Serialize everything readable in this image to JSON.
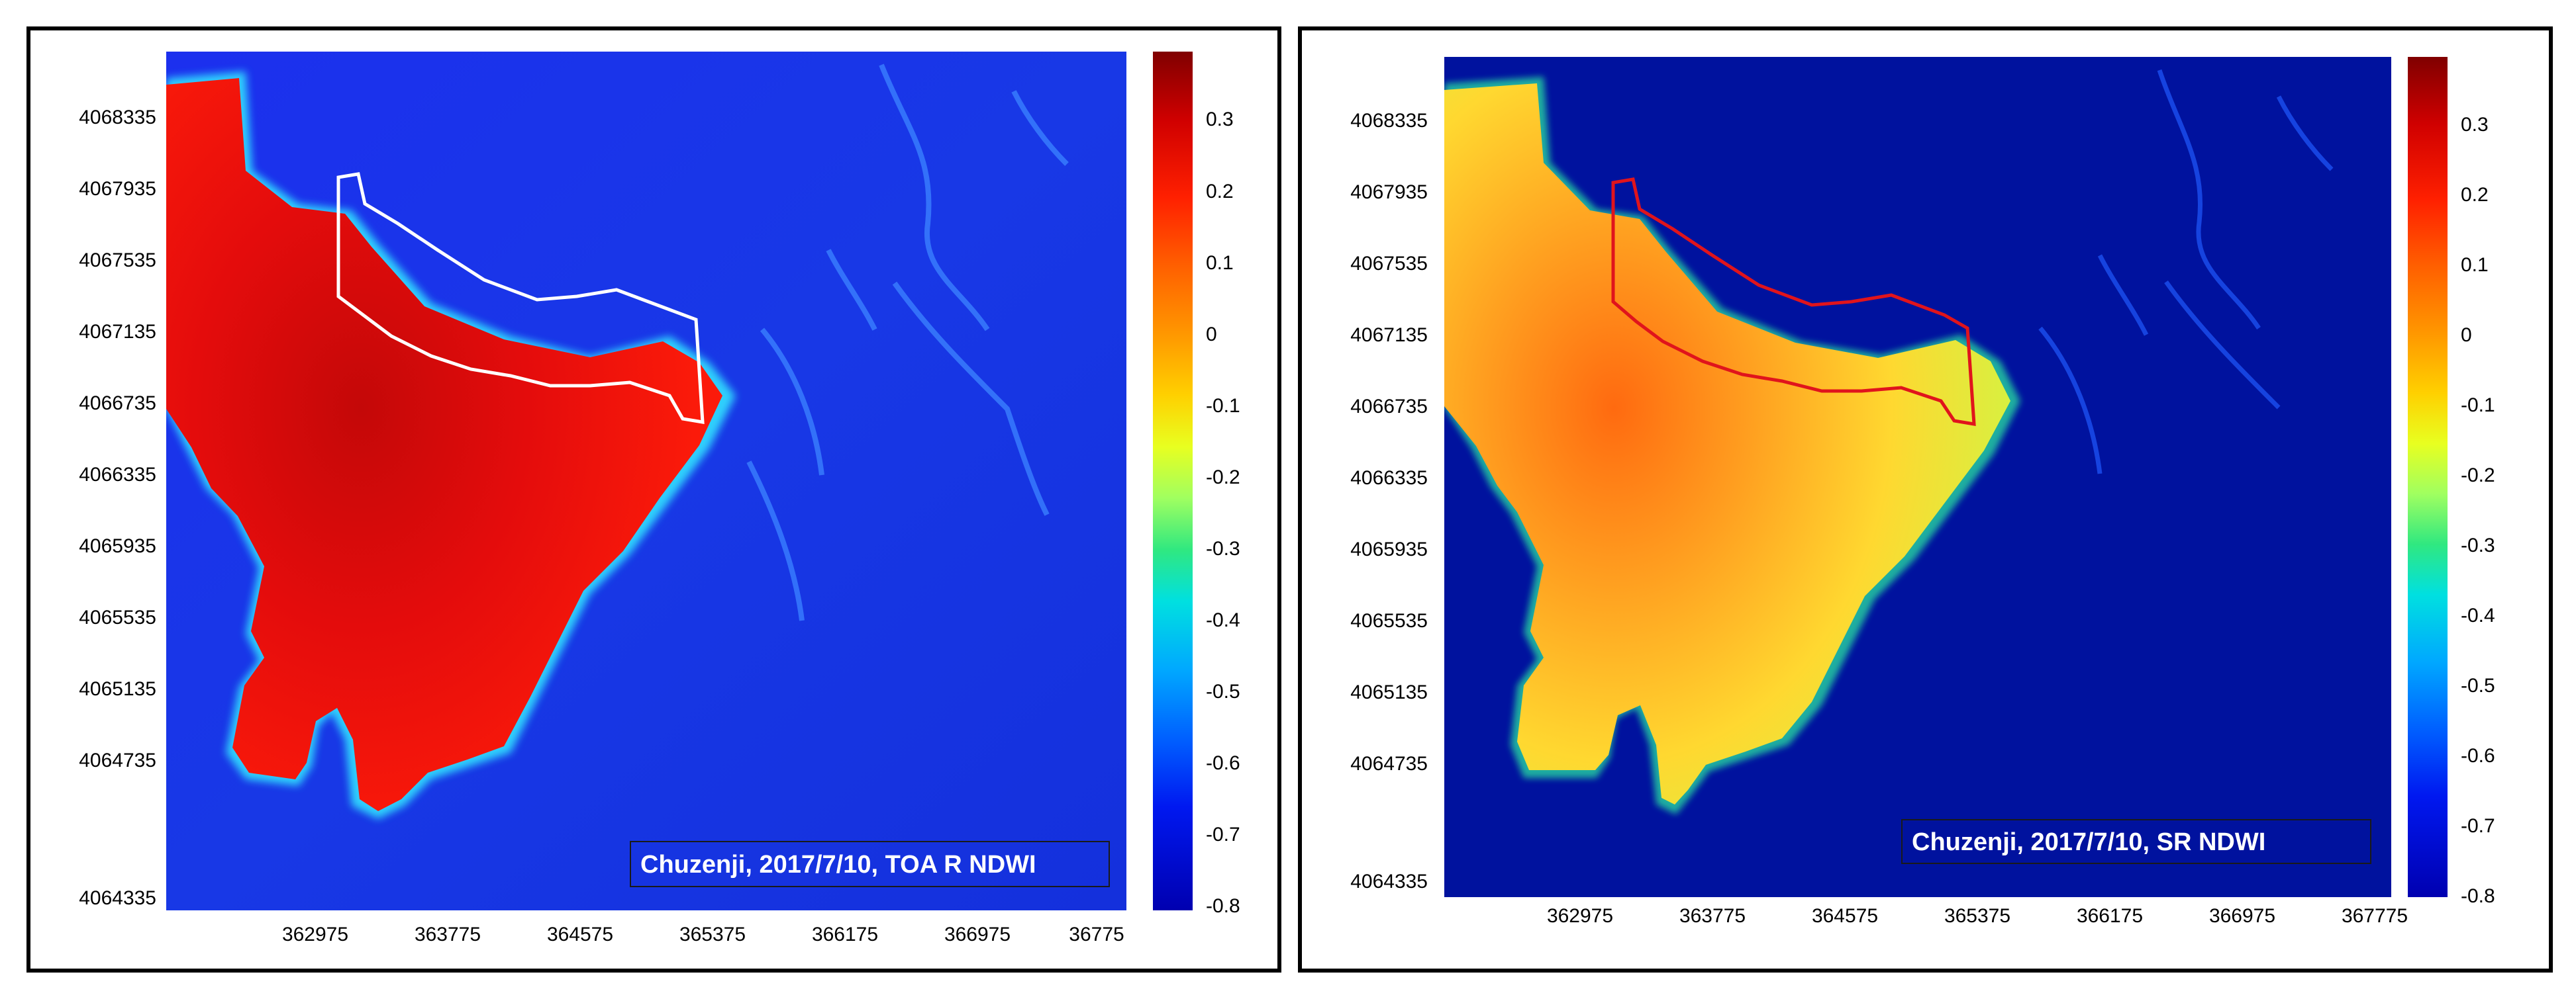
{
  "chart_data": [
    {
      "type": "heatmap",
      "title": "Chuzenji, 2017/7/10, TOA R NDWI",
      "y_ticks": [
        "4068335",
        "4067935",
        "4067535",
        "4067135",
        "4066735",
        "4066335",
        "4065935",
        "4065535",
        "4065135",
        "4064735",
        "4064335"
      ],
      "x_ticks": [
        "362975",
        "363775",
        "364575",
        "365375",
        "366175",
        "366975",
        "36775"
      ],
      "colorbar": {
        "ticks": [
          "0.3",
          "0.2",
          "0.1",
          "0",
          "-0.1",
          "-0.2",
          "-0.3",
          "-0.4",
          "-0.5",
          "-0.6",
          "-0.7",
          "-0.8"
        ],
        "range": [
          -0.8,
          0.4
        ],
        "colormap": "jet"
      },
      "lake_value": 0.33,
      "background_value": -0.7,
      "outline_color": "#ffffff"
    },
    {
      "type": "heatmap",
      "title": "Chuzenji, 2017/7/10, SR NDWI",
      "y_ticks": [
        "4068335",
        "4067935",
        "4067535",
        "4067135",
        "4066735",
        "4066335",
        "4065935",
        "4065535",
        "4065135",
        "4064735",
        "4064335"
      ],
      "x_ticks": [
        "362975",
        "363775",
        "364575",
        "365375",
        "366175",
        "366975",
        "367775"
      ],
      "colorbar": {
        "ticks": [
          "0.3",
          "0.2",
          "0.1",
          "0",
          "-0.1",
          "-0.2",
          "-0.3",
          "-0.4",
          "-0.5",
          "-0.6",
          "-0.7",
          "-0.8"
        ],
        "range": [
          -0.8,
          0.4
        ],
        "colormap": "jet"
      },
      "lake_value": 0.0,
      "background_value": -0.8,
      "outline_color": "#e0141c"
    }
  ]
}
